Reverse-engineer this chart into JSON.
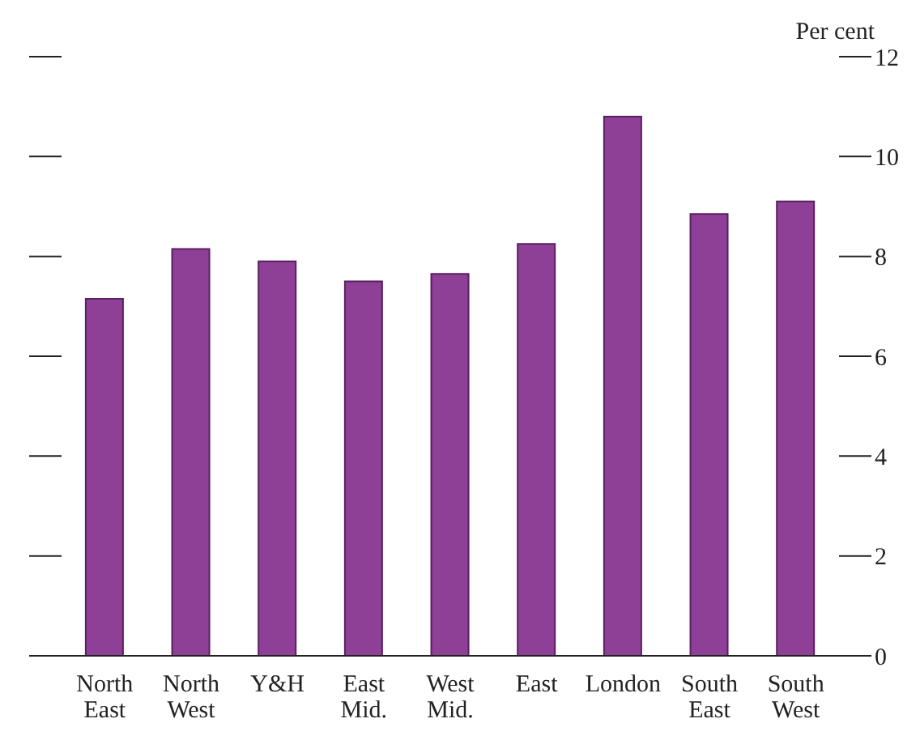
{
  "chart_data": {
    "type": "bar",
    "ylabel": "Per cent",
    "categories": [
      "North East",
      "North West",
      "Y&H",
      "East Mid.",
      "West Mid.",
      "East",
      "London",
      "South East",
      "South West"
    ],
    "values": [
      7.15,
      8.15,
      7.9,
      7.5,
      7.65,
      8.25,
      10.8,
      8.85,
      9.1
    ],
    "color": "#8e3f96",
    "ylim": [
      0,
      12
    ],
    "yticks": [
      0,
      2,
      4,
      6,
      8,
      10,
      12
    ],
    "grid": false,
    "legend": false
  }
}
